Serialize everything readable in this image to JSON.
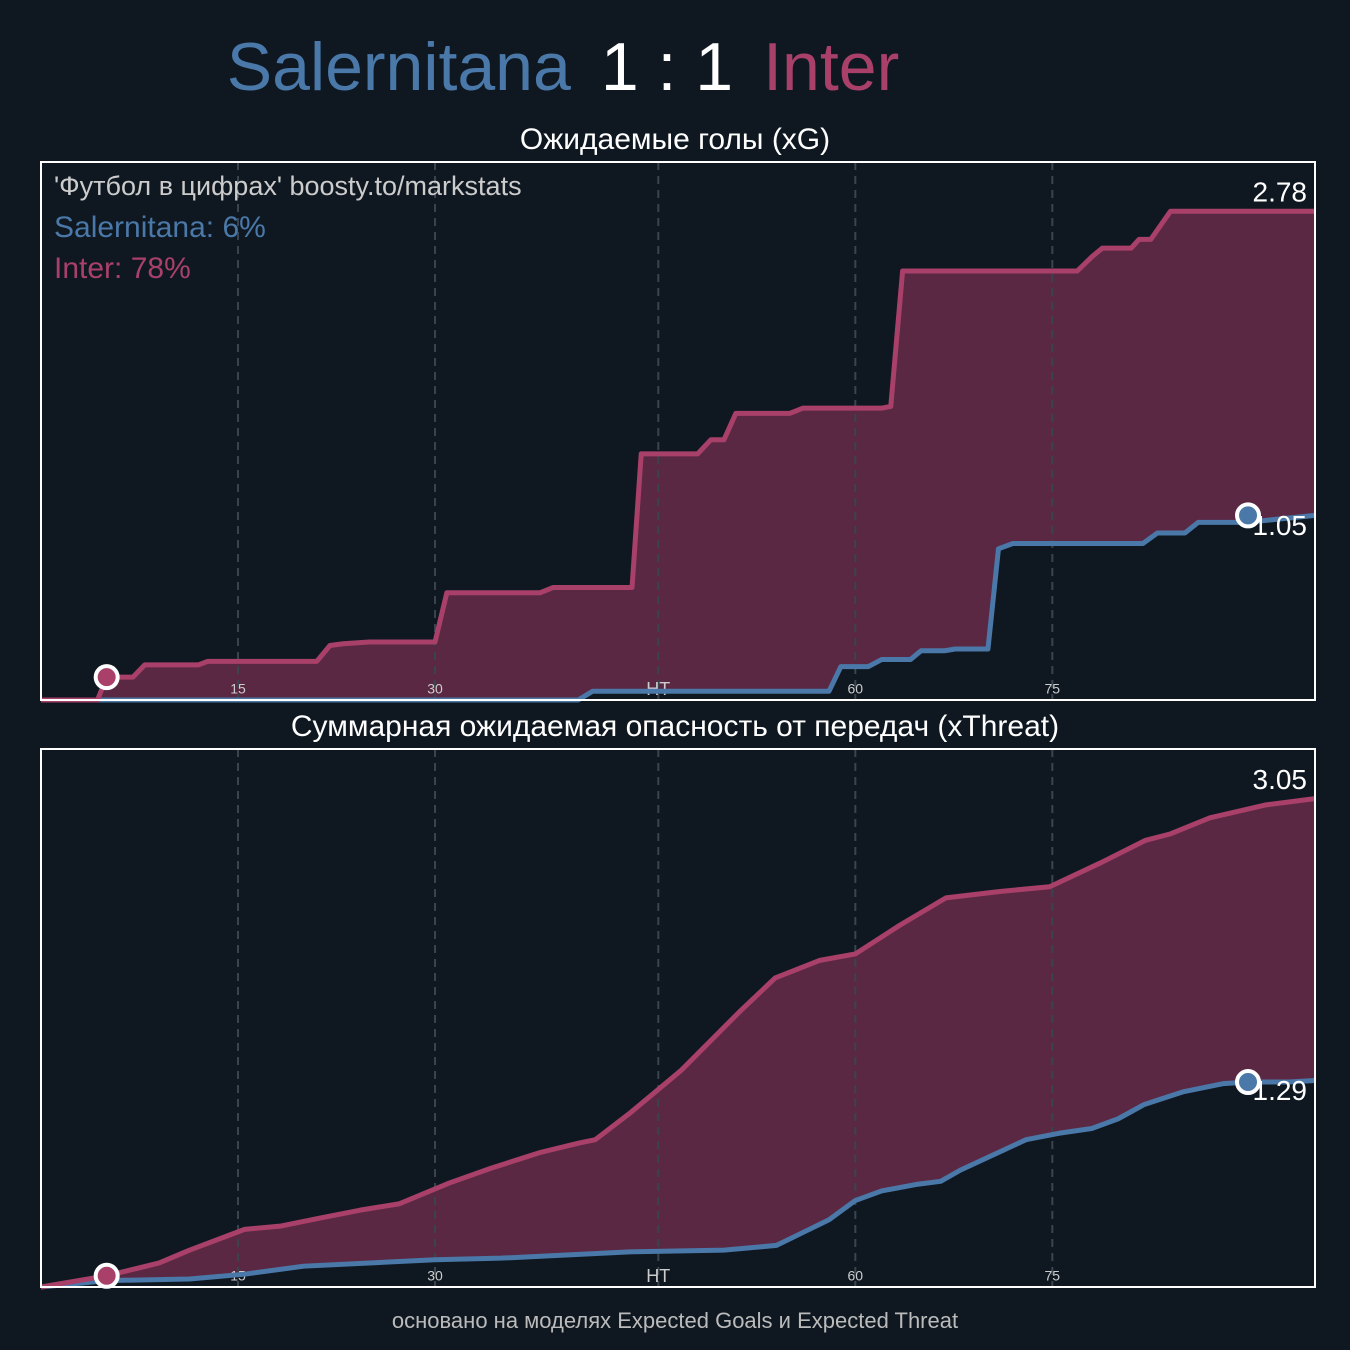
{
  "header": {
    "home": "Salernitana",
    "score": "1 : 1",
    "away": "Inter"
  },
  "footer": "основано на моделях Expected Goals и Expected Threat",
  "chart_data": [
    {
      "type": "line",
      "title": "Ожидаемые голы (xG)",
      "annotations": [
        "'Футбол в цифрах' boosty.to/markstats",
        "Salernitana: 6%",
        "Inter: 78%"
      ],
      "xlim": [
        0,
        97
      ],
      "xticks": [
        15,
        30,
        {
          "value": 47,
          "label": "HT"
        },
        {
          "value": 62,
          "label": "60"
        },
        {
          "value": 77,
          "label": "75"
        }
      ],
      "ylim": [
        0,
        3.06
      ],
      "grid": true,
      "series": [
        {
          "color": "#4a78a8",
          "x": [
            0,
            40.9,
            42,
            60,
            60.9,
            63,
            64,
            66.2,
            67,
            68.8,
            69.6,
            72.1,
            72.9,
            74,
            83.9,
            85,
            87.1,
            88.1,
            91.7,
            97
          ],
          "values": [
            0,
            0,
            0.05,
            0.05,
            0.19,
            0.19,
            0.23,
            0.23,
            0.28,
            0.28,
            0.29,
            0.29,
            0.86,
            0.89,
            0.89,
            0.95,
            0.95,
            1.01,
            1.01,
            1.05
          ],
          "markers": [
            {
              "x": 91.9,
              "value": 1.05
            }
          ]
        },
        {
          "color": "#a8406a",
          "x": [
            0,
            4.3,
            5,
            7,
            7.9,
            12,
            12.7,
            21,
            22,
            23,
            25,
            30,
            30.9,
            38,
            39,
            45,
            45.7,
            50,
            51,
            52,
            52.9,
            57,
            58,
            64,
            64.7,
            65.6,
            78.9,
            80,
            80.8,
            83,
            83.6,
            84.5,
            86,
            97
          ],
          "values": [
            0,
            0,
            0.13,
            0.13,
            0.2,
            0.2,
            0.22,
            0.22,
            0.31,
            0.32,
            0.33,
            0.33,
            0.61,
            0.61,
            0.64,
            0.64,
            1.4,
            1.4,
            1.48,
            1.48,
            1.63,
            1.63,
            1.66,
            1.66,
            1.67,
            2.44,
            2.44,
            2.52,
            2.57,
            2.57,
            2.62,
            2.62,
            2.78,
            2.78
          ],
          "markers": [
            {
              "x": 5,
              "value": 0.13
            }
          ]
        }
      ]
    },
    {
      "type": "line",
      "title": "Суммарная ожидаемая опасность от передач (xThreat)",
      "xlim": [
        0,
        97
      ],
      "xticks": [
        15,
        30,
        {
          "value": 47,
          "label": "HT"
        },
        {
          "value": 62,
          "label": "60"
        },
        {
          "value": 77,
          "label": "75"
        }
      ],
      "ylim": [
        0,
        3.36
      ],
      "grid": true,
      "series": [
        {
          "color": "#4a78a8",
          "x": [
            0,
            5,
            11.3,
            15.5,
            20,
            25,
            30,
            35,
            40,
            45,
            52,
            56,
            58,
            60,
            62,
            64,
            66.6,
            68.5,
            70,
            75,
            77.5,
            80,
            82,
            84,
            87,
            90,
            92,
            95,
            97
          ],
          "values": [
            0,
            0.04,
            0.05,
            0.08,
            0.13,
            0.15,
            0.17,
            0.18,
            0.2,
            0.22,
            0.23,
            0.26,
            0.34,
            0.42,
            0.54,
            0.6,
            0.64,
            0.66,
            0.73,
            0.92,
            0.96,
            0.99,
            1.05,
            1.14,
            1.22,
            1.27,
            1.28,
            1.28,
            1.29
          ],
          "markers": [
            {
              "x": 91.9,
              "value": 1.28
            }
          ]
        },
        {
          "color": "#a8406a",
          "x": [
            0,
            5,
            9,
            11.3,
            15.5,
            18.2,
            21.2,
            24.3,
            27.3,
            31.1,
            34.2,
            38,
            41,
            42.2,
            44.9,
            48.7,
            53.2,
            55.9,
            59.3,
            62,
            65.4,
            68.9,
            73,
            76.8,
            80.7,
            84.1,
            86,
            89,
            93.2,
            97
          ],
          "values": [
            0,
            0.07,
            0.15,
            0.23,
            0.36,
            0.38,
            0.43,
            0.48,
            0.52,
            0.65,
            0.74,
            0.84,
            0.9,
            0.92,
            1.09,
            1.35,
            1.72,
            1.93,
            2.04,
            2.08,
            2.26,
            2.43,
            2.47,
            2.5,
            2.65,
            2.79,
            2.83,
            2.93,
            3.01,
            3.05
          ],
          "markers": [
            {
              "x": 5,
              "value": 0.07
            }
          ]
        }
      ]
    }
  ]
}
